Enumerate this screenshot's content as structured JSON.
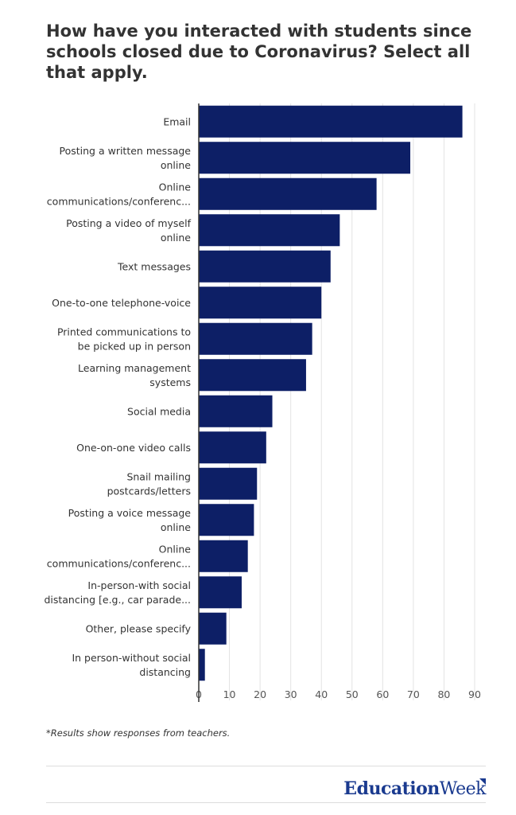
{
  "title": "How have you interacted with students since schools closed due to Coronavirus? Select all that apply.",
  "footnote": "*Results show responses from teachers.",
  "logo": {
    "part1": "Education",
    "part2": "Week"
  },
  "colors": {
    "bar": "#0d1f66",
    "grid": "#e3e3e3",
    "axis": "#333333"
  },
  "chart_data": {
    "type": "bar",
    "orientation": "horizontal",
    "title": "How have you interacted with students since schools closed due to Coronavirus? Select all that apply.",
    "xlabel": "",
    "ylabel": "",
    "xlim": [
      0,
      90
    ],
    "ticks": [
      0,
      10,
      20,
      30,
      40,
      50,
      60,
      70,
      80,
      90
    ],
    "grid": true,
    "categories": [
      [
        "Email"
      ],
      [
        "Posting a written message",
        "online"
      ],
      [
        "Online",
        "communications/conferenc..."
      ],
      [
        "Posting a video of myself",
        "online"
      ],
      [
        "Text messages"
      ],
      [
        "One-to-one telephone-voice"
      ],
      [
        "Printed communications to",
        "be picked up in person"
      ],
      [
        "Learning management",
        "systems"
      ],
      [
        "Social media"
      ],
      [
        "One-on-one video calls"
      ],
      [
        "Snail mailing",
        "postcards/letters"
      ],
      [
        "Posting a voice message",
        "online"
      ],
      [
        "Online",
        "communications/conferenc..."
      ],
      [
        "In-person-with social",
        "distancing [e.g., car parade..."
      ],
      [
        "Other, please specify"
      ],
      [
        "In person-without social",
        "distancing"
      ]
    ],
    "values": [
      86,
      69,
      58,
      46,
      43,
      40,
      37,
      35,
      24,
      22,
      19,
      18,
      16,
      14,
      9,
      2
    ]
  }
}
